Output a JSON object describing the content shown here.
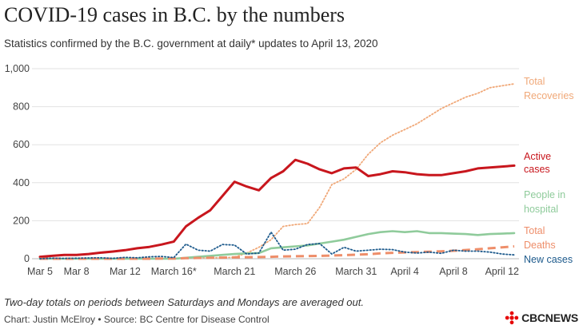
{
  "header": {
    "title": "COVID-19 cases in B.C. by the numbers",
    "subtitle": "Statistics confirmed by the B.C. government at daily* updates to April 13, 2020"
  },
  "footer": {
    "note": "Two-day totals on periods between Saturdays and Mondays are averaged out.",
    "credit": "Chart: Justin McElroy • Source: BC Centre for Disease Control",
    "logo_text": "CBCNEWS"
  },
  "chart_data": {
    "type": "line",
    "ylim": [
      0,
      1000
    ],
    "yticks": [
      {
        "value": 0,
        "label": "0"
      },
      {
        "value": 200,
        "label": "200"
      },
      {
        "value": 400,
        "label": "400"
      },
      {
        "value": 600,
        "label": "600"
      },
      {
        "value": 800,
        "label": "800"
      },
      {
        "value": 1000,
        "label": "1,000"
      }
    ],
    "x": [
      "Mar 5",
      "Mar 6",
      "Mar 7",
      "Mar 8",
      "Mar 9",
      "Mar 10",
      "Mar 11",
      "Mar 12",
      "Mar 13",
      "Mar 14",
      "Mar 15",
      "Mar 16",
      "Mar 17",
      "Mar 18",
      "Mar 19",
      "Mar 20",
      "Mar 21",
      "Mar 22",
      "Mar 23",
      "Mar 24",
      "Mar 25",
      "Mar 26",
      "Mar 27",
      "Mar 28",
      "Mar 29",
      "Mar 30",
      "Mar 31",
      "Apr 1",
      "Apr 2",
      "Apr 3",
      "Apr 4",
      "Apr 5",
      "Apr 6",
      "Apr 7",
      "Apr 8",
      "Apr 9",
      "Apr 10",
      "Apr 11",
      "Apr 12",
      "Apr 13"
    ],
    "xticks": [
      {
        "index": 0,
        "label": "Mar 5"
      },
      {
        "index": 3,
        "label": "Mar 8"
      },
      {
        "index": 7,
        "label": "Mar 12"
      },
      {
        "index": 11,
        "label": "March 16*"
      },
      {
        "index": 16,
        "label": "March 21"
      },
      {
        "index": 21,
        "label": "March 26"
      },
      {
        "index": 26,
        "label": "March 31"
      },
      {
        "index": 30,
        "label": "April 4"
      },
      {
        "index": 34,
        "label": "April 8"
      },
      {
        "index": 38,
        "label": "April 12"
      }
    ],
    "series": [
      {
        "name": "Total Recoveries",
        "label_lines": [
          "Total",
          "Recoveries"
        ],
        "color": "#f0a878",
        "style": "dotted",
        "values": [
          0,
          0,
          0,
          0,
          0,
          0,
          0,
          0,
          0,
          0,
          0,
          0,
          3,
          4,
          5,
          5,
          8,
          30,
          60,
          100,
          170,
          180,
          185,
          270,
          390,
          420,
          470,
          550,
          610,
          650,
          680,
          710,
          750,
          790,
          820,
          850,
          870,
          900,
          910,
          920
        ]
      },
      {
        "name": "Active cases",
        "label_lines": [
          "Active",
          "cases"
        ],
        "color": "#c8161d",
        "style": "solid",
        "values": [
          10,
          15,
          20,
          20,
          25,
          32,
          38,
          45,
          55,
          62,
          75,
          90,
          170,
          215,
          255,
          330,
          405,
          380,
          360,
          425,
          460,
          520,
          500,
          470,
          450,
          475,
          480,
          435,
          445,
          460,
          455,
          445,
          440,
          440,
          450,
          460,
          475,
          480,
          485,
          490
        ]
      },
      {
        "name": "People in hospital",
        "label_lines": [
          "People in",
          "hospital"
        ],
        "color": "#8fcb9b",
        "style": "solid",
        "values": [
          0,
          0,
          0,
          0,
          0,
          0,
          0,
          0,
          0,
          0,
          0,
          0,
          5,
          10,
          15,
          20,
          25,
          28,
          30,
          55,
          60,
          65,
          70,
          80,
          90,
          100,
          115,
          130,
          140,
          145,
          140,
          145,
          135,
          135,
          132,
          130,
          125,
          130,
          132,
          135
        ]
      },
      {
        "name": "Total Deaths",
        "label_lines": [
          "Total",
          "Deaths"
        ],
        "color": "#ee8e6a",
        "style": "dashed",
        "values": [
          0,
          0,
          0,
          0,
          0,
          0,
          0,
          0,
          0,
          0,
          1,
          1,
          3,
          4,
          5,
          6,
          7,
          8,
          9,
          10,
          12,
          13,
          14,
          15,
          17,
          19,
          21,
          24,
          28,
          31,
          33,
          35,
          37,
          39,
          42,
          46,
          50,
          55,
          60,
          65
        ]
      },
      {
        "name": "New cases",
        "label_lines": [
          "New cases"
        ],
        "color": "#1d5a8c",
        "style": "dotted",
        "values": [
          0,
          3,
          2,
          3,
          4,
          5,
          2,
          7,
          5,
          10,
          12,
          6,
          77,
          45,
          40,
          75,
          72,
          25,
          30,
          140,
          45,
          50,
          75,
          80,
          25,
          60,
          40,
          45,
          50,
          48,
          35,
          30,
          35,
          28,
          45,
          40,
          40,
          35,
          25,
          20
        ]
      }
    ],
    "grid": true,
    "legend": "inline-right"
  }
}
